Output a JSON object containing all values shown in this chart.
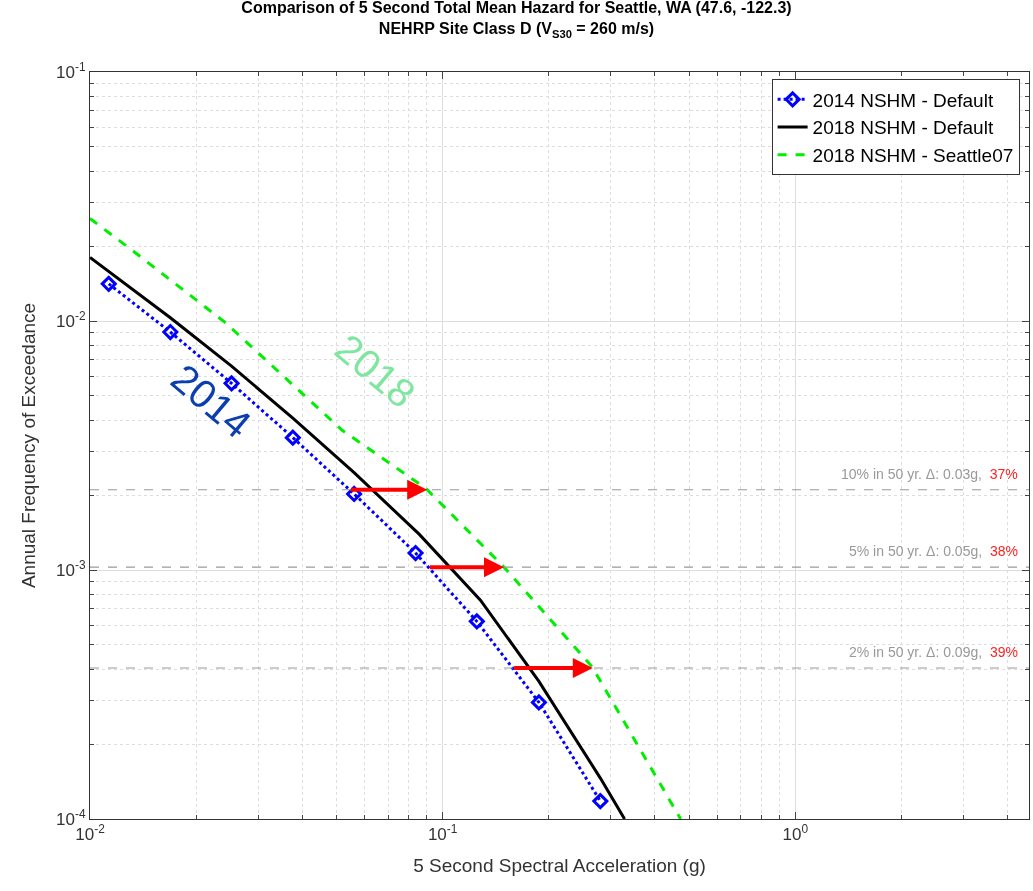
{
  "chart_data": {
    "type": "line",
    "title": "Comparison of 5 Second Total Mean Hazard for Seattle, WA (47.6, -122.3)",
    "subtitle": "NEHRP Site Class D (V$_{S30}$ = 260 m/s)",
    "xlabel": "5 Second Spectral Acceleration (g)",
    "ylabel": "Annual Frequency of Exceedance",
    "log": "xy",
    "grid": true,
    "legend": "top right",
    "xlim": [
      0.01,
      4.6
    ],
    "ylim": [
      0.0001,
      0.1
    ],
    "xticks": [
      {
        "value": 0.01,
        "label": "10$^{-2}$"
      },
      {
        "value": 0.1,
        "label": "10$^{-1}$"
      },
      {
        "value": 1,
        "label": "10$^{0}$"
      }
    ],
    "yticks": [
      {
        "value": 0.0001,
        "label": "10$^{-4}$"
      },
      {
        "value": 0.001,
        "label": "10$^{-3}$"
      },
      {
        "value": 0.01,
        "label": "10$^{-2}$"
      },
      {
        "value": 0.1,
        "label": "10$^{-1}$"
      }
    ],
    "series": [
      {
        "name": "2014 NSHM - Default",
        "color": "#0000ff",
        "marker": "diamond",
        "line_style": "dotted",
        "x": [
          0.0113,
          0.0169,
          0.0252,
          0.0376,
          0.0561,
          0.0838,
          0.125,
          0.1875,
          0.28
        ],
        "values": [
          0.0141,
          0.00903,
          0.00562,
          0.0034,
          0.00202,
          0.00117,
          0.000622,
          0.000294,
          0.000118
        ]
      },
      {
        "name": "2018 NSHM - Default",
        "color": "#000000",
        "marker": "none",
        "line_style": "solid",
        "x": [
          0.01,
          0.0169,
          0.0252,
          0.0376,
          0.0561,
          0.0859,
          0.128,
          0.1875,
          0.28,
          0.328
        ],
        "values": [
          0.018,
          0.0103,
          0.00659,
          0.00407,
          0.00246,
          0.00139,
          0.000757,
          0.000357,
          0.000146,
          0.0001
        ]
      },
      {
        "name": "2018 NSHM - Seattle07",
        "color": "#00ee00",
        "marker": "none",
        "line_style": "dashed",
        "x": [
          0.01,
          0.013,
          0.0241,
          0.0519,
          0.0895,
          0.148,
          0.265,
          0.473
        ],
        "values": [
          0.0258,
          0.0195,
          0.0099,
          0.00364,
          0.00213,
          0.00104,
          0.00041,
          0.0001
        ]
      }
    ],
    "ref_lines": [
      {
        "axis": "y",
        "value": 0.0021,
        "color": "#999999",
        "line_style": "dashed"
      },
      {
        "axis": "y",
        "value": 0.001026,
        "color": "#999999",
        "line_style": "dashed"
      },
      {
        "axis": "y",
        "value": 0.000404,
        "color": "#999999",
        "line_style": "dashed"
      }
    ],
    "annotations": [
      "2014",
      "2018",
      {
        "text": "10% in 50 yr. Δ: 0.03g, 37%",
        "y": 0.0021
      },
      {
        "text": "5% in 50 yr. Δ: 0.05g, 38%",
        "y": 0.001026
      },
      {
        "text": "2% in 50 yr. Δ: 0.09g, 39%",
        "y": 0.000404
      }
    ]
  }
}
